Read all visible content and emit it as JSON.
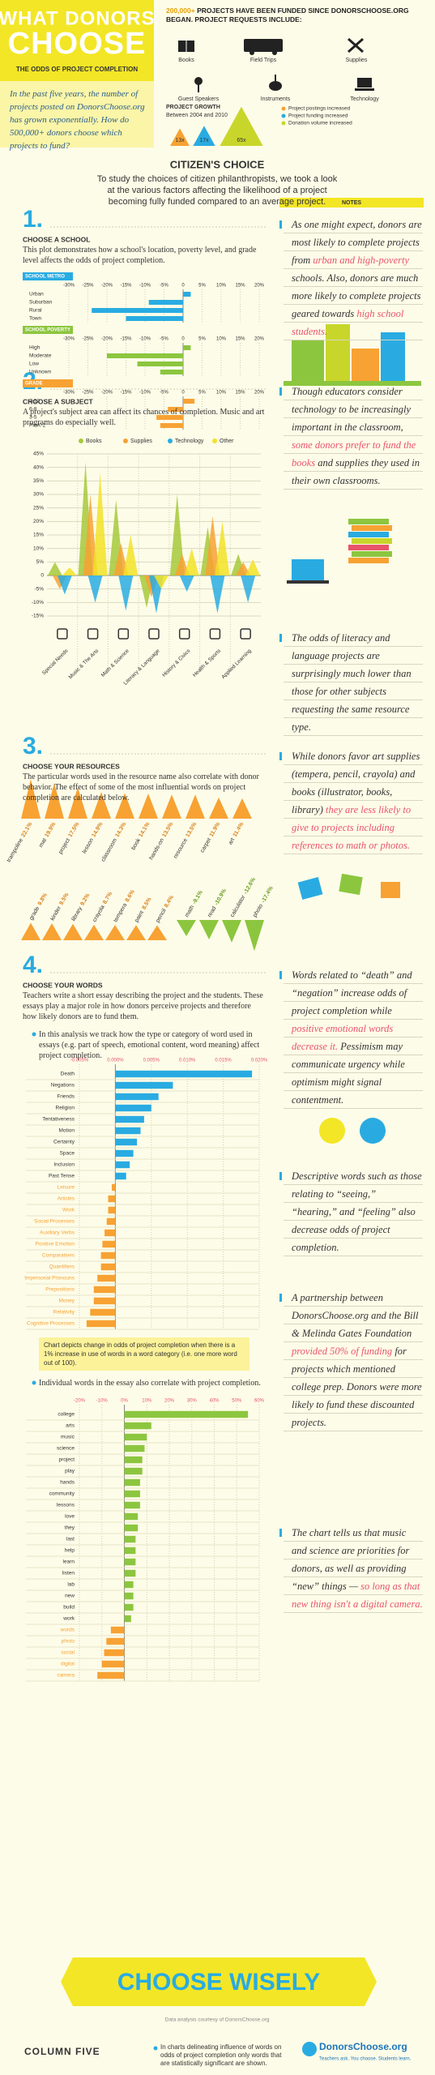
{
  "header": {
    "title_line1": "WHAT DONORS",
    "title_line2": "CHOOSE",
    "subtitle": "THE ODDS OF PROJECT COMPLETION",
    "intro": "In the past five years, the number of projects posted on DonorsChoose.org has grown exponentially. How do 500,000+ donors choose which projects to fund?",
    "funded_highlight": "200,000+",
    "funded_text": "PROJECTS HAVE BEEN FUNDED SINCE DONORSCHOOSE.ORG BEGAN. PROJECT REQUESTS INCLUDE:",
    "request_types": [
      "Books",
      "Field Trips",
      "Supplies",
      "Guest Speakers",
      "Instruments",
      "Technology"
    ],
    "growth": {
      "title": "PROJECT GROWTH",
      "period": "Between 2004 and 2010",
      "series": [
        {
          "name": "Project postings increased",
          "color": "#f7a233",
          "value": 13,
          "value_label": "13x"
        },
        {
          "name": "Project funding increased",
          "color": "#29abe2",
          "value": 17,
          "value_label": "17x"
        },
        {
          "name": "Donation volume increased",
          "color": "#c8d62b",
          "value": 65,
          "value_label": "65x"
        }
      ]
    }
  },
  "intro_section": {
    "title": "CITIZEN'S CHOICE",
    "text": "To study the choices of citizen philanthropists, we took a look at the various factors affecting the likelihood of a project becoming fully funded compared to an average project."
  },
  "notes_label": "NOTES",
  "sections": [
    {
      "number": "1.",
      "title": "CHOOSE A SCHOOL",
      "text": "This plot demonstrates how a school's location, poverty level, and grade level affects the odds of project completion.",
      "charts": [
        {
          "type": "bar",
          "label": "SCHOOL METRO",
          "color": "#29abe2",
          "categories": [
            "Urban",
            "Suburban",
            "Rural",
            "Town"
          ],
          "values": [
            2,
            -9,
            -24,
            -15
          ],
          "xlim": [
            -30,
            20
          ],
          "xticks": [
            {
              "value": -30,
              "label": "-30%"
            },
            {
              "value": -25,
              "label": "-25%"
            },
            {
              "value": -20,
              "label": "-20%"
            },
            {
              "value": -15,
              "label": "-15%"
            },
            {
              "value": -10,
              "label": "-10%"
            },
            {
              "value": -5,
              "label": "-5%"
            },
            0,
            {
              "value": 5,
              "label": "5%"
            },
            {
              "value": 10,
              "label": "10%"
            },
            {
              "value": 15,
              "label": "15%"
            },
            {
              "value": 20,
              "label": "20%"
            }
          ]
        },
        {
          "type": "bar",
          "label": "SCHOOL POVERTY",
          "color": "#8cc63f",
          "categories": [
            "High",
            "Moderate",
            "Low",
            "Unknown"
          ],
          "values": [
            2,
            -20,
            -12,
            -6
          ],
          "xlim": [
            -30,
            20
          ],
          "xticks": [
            {
              "value": -30,
              "label": "-30%"
            },
            {
              "value": -25,
              "label": "-25%"
            },
            {
              "value": -20,
              "label": "-20%"
            },
            {
              "value": -15,
              "label": "-15%"
            },
            {
              "value": -10,
              "label": "-10%"
            },
            {
              "value": -5,
              "label": "-5%"
            },
            0,
            {
              "value": 5,
              "label": "5%"
            },
            {
              "value": 10,
              "label": "10%"
            },
            {
              "value": 15,
              "label": "15%"
            },
            {
              "value": 20,
              "label": "20%"
            }
          ]
        },
        {
          "type": "bar",
          "label": "GRADE",
          "color": "#f7a233",
          "categories": [
            "9-12",
            "6-8",
            "3-5",
            "PreK-2"
          ],
          "values": [
            3,
            -4,
            -7,
            -6
          ],
          "xlim": [
            -30,
            20
          ],
          "xticks": [
            {
              "value": -30,
              "label": "-30%"
            },
            {
              "value": -25,
              "label": "-25%"
            },
            {
              "value": -20,
              "label": "-20%"
            },
            {
              "value": -15,
              "label": "-15%"
            },
            {
              "value": -10,
              "label": "-10%"
            },
            {
              "value": -5,
              "label": "-5%"
            },
            0,
            {
              "value": 5,
              "label": "5%"
            },
            {
              "value": 10,
              "label": "10%"
            },
            {
              "value": 15,
              "label": "15%"
            },
            {
              "value": 20,
              "label": "20%"
            }
          ]
        }
      ],
      "notes": [
        {
          "parts": [
            {
              "text": "As one might expect, donors are most likely to complete projects from ",
              "color": "#333333"
            },
            {
              "text": "urban and high-poverty",
              "color": "#e9546b"
            },
            {
              "text": " schools. Also, donors are much more likely to complete projects geared towards ",
              "color": "#333333"
            },
            {
              "text": "high school students.",
              "color": "#e9546b"
            }
          ]
        }
      ]
    },
    {
      "number": "2.",
      "title": "CHOOSE A SUBJECT",
      "text": "A project's subject area can affect its chances of completion. Music and art programs do especially well.",
      "charts": [
        {
          "type": "spike",
          "categories": [
            "Special Needs",
            "Music & The Arts",
            "Math & Science",
            "Literacy & Language",
            "History & Civics",
            "Health & Sports",
            "Applied Learning"
          ],
          "series": [
            {
              "name": "Books",
              "color": "#a6c93a",
              "values": [
                5,
                42,
                28,
                -12,
                30,
                18,
                8
              ]
            },
            {
              "name": "Supplies",
              "color": "#f7a233",
              "values": [
                -5,
                30,
                12,
                -8,
                8,
                22,
                5
              ]
            },
            {
              "name": "Technology",
              "color": "#29abe2",
              "values": [
                -7,
                -10,
                -13,
                -14,
                -6,
                -14,
                -10
              ]
            },
            {
              "name": "Other",
              "color": "#f2e226",
              "values": [
                3,
                38,
                15,
                -5,
                10,
                20,
                6
              ]
            }
          ],
          "ylim": [
            -15,
            45
          ],
          "yticks": [
            {
              "value": -15,
              "label": "-15%"
            },
            {
              "value": -10,
              "label": "-10%"
            },
            {
              "value": -5,
              "label": "-5%"
            },
            0,
            {
              "value": 5,
              "label": "5%"
            },
            {
              "value": 10,
              "label": "10%"
            },
            {
              "value": 15,
              "label": "15%"
            },
            {
              "value": 20,
              "label": "20%"
            },
            {
              "value": 25,
              "label": "25%"
            },
            {
              "value": 30,
              "label": "30%"
            },
            {
              "value": 35,
              "label": "35%"
            },
            {
              "value": 40,
              "label": "40%"
            },
            {
              "value": 45,
              "label": "45%"
            }
          ],
          "grid": true
        }
      ],
      "notes": [
        {
          "parts": [
            {
              "text": "Though educators consider technology to be increasingly important in the classroom, ",
              "color": "#333333"
            },
            {
              "text": "some donors prefer to fund the books",
              "color": "#e9546b"
            },
            {
              "text": " and supplies they used in their own classrooms.",
              "color": "#333333"
            }
          ]
        },
        {
          "parts": [
            {
              "text": "The odds of literacy and language projects are surprisingly much lower than those for other subjects requesting the same resource type.",
              "color": "#333333"
            }
          ]
        }
      ]
    },
    {
      "number": "3.",
      "title": "CHOOSE YOUR RESOURCES",
      "text": "The particular words used in the resource name also correlate with donor behavior. The effect of some of the most influential words on project completion are calculated below.",
      "charts": [
        {
          "type": "triangle",
          "rows": [
            {
              "color": "#f7a233",
              "words": [
                "trampoline",
                "mat",
                "project",
                "lesson",
                "classroom",
                "book",
                "hands-on",
                "resource",
                "carpet",
                "art"
              ],
              "values": [
                22.1,
                19.9,
                17.5,
                14.9,
                14.3,
                14.1,
                13.5,
                13.5,
                11.9,
                11.4
              ],
              "value_labels": [
                "22.1%",
                "19.9%",
                "17.5%",
                "14.9%",
                "14.3%",
                "14.1%",
                "13.5%",
                "13.5%",
                "11.9%",
                "11.4%"
              ]
            },
            {
              "color": "#f7a233",
              "words": [
                "grade",
                "kinder",
                "library",
                "crayola",
                "tempera",
                "paint",
                "pencil"
              ],
              "values": [
                9.8,
                9.5,
                9.2,
                8.7,
                8.6,
                8.5,
                8.4
              ],
              "value_labels": [
                "9.8%",
                "9.5%",
                "9.2%",
                "8.7%",
                "8.6%",
                "8.5%",
                "8.4%"
              ]
            },
            {
              "color": "#8cc63f",
              "words": [
                "math",
                "read",
                "calculator",
                "photo"
              ],
              "values": [
                -9.1,
                -10.9,
                -12.6,
                -17.4
              ],
              "value_labels": [
                "-9.1%",
                "-10.9%",
                "-12.6%",
                "-17.4%"
              ]
            }
          ]
        }
      ],
      "notes": [
        {
          "parts": [
            {
              "text": "While donors favor art supplies (tempera, pencil, crayola) and books (illustrator, books, library) ",
              "color": "#333333"
            },
            {
              "text": "they are less likely to give to projects including references to math or photos.",
              "color": "#e9546b"
            }
          ]
        }
      ]
    },
    {
      "number": "4.",
      "title": "CHOOSE YOUR WORDS",
      "text": "Teachers write a short essay describing the project and the students. These essays play a major role in how donors perceive projects and therefore how likely donors are to fund them.",
      "charts": [
        {
          "type": "bar",
          "caption": "In this analysis we track how the type or category of word used in essays (e.g. part of speech, emotional content, word meaning) affect project completion.",
          "footnote": "Chart depicts change in odds of project completion when there is a 1% increase in use of words in a word category (i.e. one more word out of 100).",
          "color": "#29abe2",
          "negative_color": "#f7a233",
          "categories": [
            "Death",
            "Negations",
            "Friends",
            "Religion",
            "Tentativeness",
            "Motion",
            "Certainty",
            "Space",
            "Inclusion",
            "Past Tense",
            "Leisure",
            "Articles",
            "Work",
            "Social Processes",
            "Auxiliary Verbs",
            "Positive Emotion",
            "Comparatives",
            "Quantifiers",
            "Impersonal Pronouns",
            "Prepositions",
            "Money",
            "Relativity",
            "Cognitive Processes"
          ],
          "values": [
            0.019,
            0.008,
            0.006,
            0.005,
            0.004,
            0.0035,
            0.003,
            0.0025,
            0.002,
            0.0015,
            -0.0005,
            -0.001,
            -0.001,
            -0.0012,
            -0.0015,
            -0.0018,
            -0.002,
            -0.002,
            -0.0025,
            -0.003,
            -0.003,
            -0.0035,
            -0.004
          ],
          "xlim": [
            -0.005,
            0.02
          ],
          "xticks": [
            {
              "value": -0.005,
              "label": "-0.005%"
            },
            {
              "value": 0,
              "label": "0.000%"
            },
            {
              "value": 0.005,
              "label": "0.005%"
            },
            {
              "value": 0.01,
              "label": "0.010%"
            },
            {
              "value": 0.015,
              "label": "0.015%"
            },
            {
              "value": 0.02,
              "label": "0.020%"
            }
          ]
        },
        {
          "type": "bar",
          "caption": "Individual words in the essay also correlate with project completion.",
          "color": "#8cc63f",
          "negative_color": "#f7a233",
          "categories": [
            "college",
            "arts",
            "music",
            "science",
            "project",
            "play",
            "hands",
            "community",
            "lessons",
            "love",
            "they",
            "last",
            "help",
            "learn",
            "listen",
            "lab",
            "new",
            "build",
            "work",
            "words",
            "photo",
            "social",
            "digital",
            "camera"
          ],
          "values": [
            55,
            12,
            10,
            9,
            8,
            8,
            7,
            7,
            7,
            6,
            6,
            5,
            5,
            5,
            5,
            4,
            4,
            4,
            3,
            -6,
            -8,
            -9,
            -10,
            -12
          ],
          "xlim": [
            -20,
            60
          ],
          "xticks": [
            {
              "value": -20,
              "label": "-20%"
            },
            {
              "value": -10,
              "label": "-10%"
            },
            {
              "value": 0,
              "label": "0%"
            },
            {
              "value": 10,
              "label": "10%"
            },
            {
              "value": 20,
              "label": "20%"
            },
            {
              "value": 30,
              "label": "30%"
            },
            {
              "value": 40,
              "label": "40%"
            },
            {
              "value": 50,
              "label": "50%"
            },
            {
              "value": 60,
              "label": "60%"
            }
          ]
        }
      ],
      "notes": [
        {
          "parts": [
            {
              "text": "Words related to “death” and “negation” increase odds of project completion while ",
              "color": "#333333"
            },
            {
              "text": "positive emotional words decrease it.",
              "color": "#e9546b"
            },
            {
              "text": " Pessimism may communicate urgency while optimism might signal contentment.",
              "color": "#333333"
            }
          ]
        },
        {
          "parts": [
            {
              "text": "Descriptive words such as those relating to “seeing,” “hearing,” and “feeling” also decrease odds of project completion.",
              "color": "#333333"
            }
          ]
        },
        {
          "parts": [
            {
              "text": "A partnership between DonorsChoose.org and the Bill & Melinda Gates Foundation ",
              "color": "#333333"
            },
            {
              "text": "provided 50% of funding",
              "color": "#e9546b"
            },
            {
              "text": " for projects which mentioned college prep. Donors were more likely to fund these discounted projects.",
              "color": "#333333"
            }
          ]
        },
        {
          "parts": [
            {
              "text": "The chart tells us that music and science are priorities for donors, as well as providing “new” things — ",
              "color": "#333333"
            },
            {
              "text": "so long as that new thing isn't a digital camera.",
              "color": "#e9546b"
            }
          ]
        }
      ]
    }
  ],
  "footer": {
    "banner": "CHOOSE WISELY",
    "credit": "Data analysis courtesy of DonorsChoose.org",
    "brand": "COLUMN FIVE",
    "disclaimer": "In charts delineating influence of words on odds of project completion only words that are statistically significant are shown.",
    "partner": "DonorsChoose.org",
    "partner_tagline": "Teachers ask. You choose. Students learn."
  }
}
